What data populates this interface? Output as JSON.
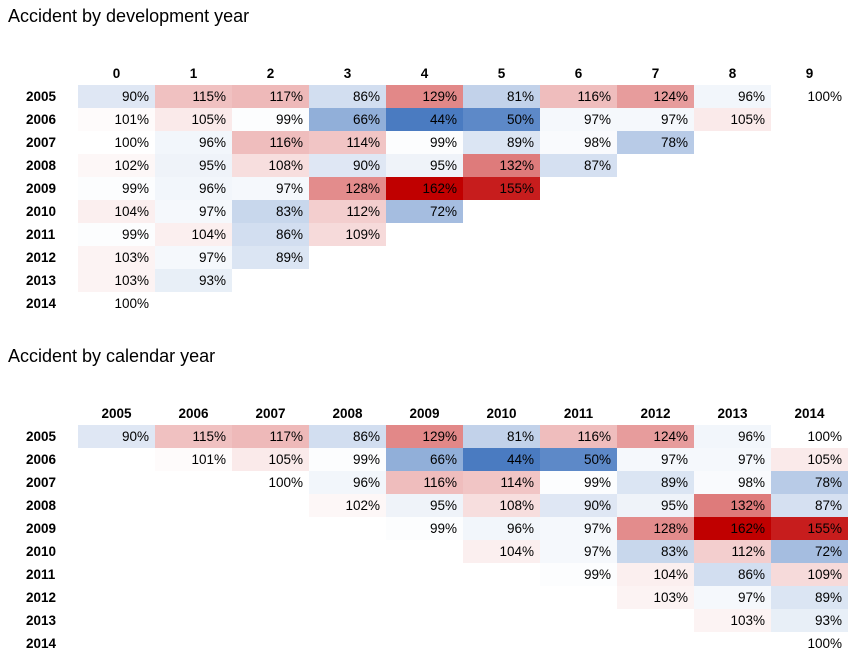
{
  "chart_data": [
    {
      "type": "heatmap",
      "title": "Accident by development year",
      "columns": [
        "0",
        "1",
        "2",
        "3",
        "4",
        "5",
        "6",
        "7",
        "8",
        "9"
      ],
      "rows": [
        {
          "label": "2005",
          "offset": 0,
          "values": [
            90,
            115,
            117,
            86,
            129,
            81,
            116,
            124,
            96,
            100
          ]
        },
        {
          "label": "2006",
          "offset": 0,
          "values": [
            101,
            105,
            99,
            66,
            44,
            50,
            97,
            97,
            105
          ]
        },
        {
          "label": "2007",
          "offset": 0,
          "values": [
            100,
            96,
            116,
            114,
            99,
            89,
            98,
            78
          ]
        },
        {
          "label": "2008",
          "offset": 0,
          "values": [
            102,
            95,
            108,
            90,
            95,
            132,
            87
          ]
        },
        {
          "label": "2009",
          "offset": 0,
          "values": [
            99,
            96,
            97,
            128,
            162,
            155
          ]
        },
        {
          "label": "2010",
          "offset": 0,
          "values": [
            104,
            97,
            83,
            112,
            72
          ]
        },
        {
          "label": "2011",
          "offset": 0,
          "values": [
            99,
            104,
            86,
            109
          ]
        },
        {
          "label": "2012",
          "offset": 0,
          "values": [
            103,
            97,
            89
          ]
        },
        {
          "label": "2013",
          "offset": 0,
          "values": [
            103,
            93
          ]
        },
        {
          "label": "2014",
          "offset": 0,
          "values": [
            100
          ]
        }
      ],
      "unit": "%"
    },
    {
      "type": "heatmap",
      "title": "Accident by calendar year",
      "columns": [
        "2005",
        "2006",
        "2007",
        "2008",
        "2009",
        "2010",
        "2011",
        "2012",
        "2013",
        "2014"
      ],
      "rows": [
        {
          "label": "2005",
          "offset": 0,
          "values": [
            90,
            115,
            117,
            86,
            129,
            81,
            116,
            124,
            96,
            100
          ]
        },
        {
          "label": "2006",
          "offset": 1,
          "values": [
            101,
            105,
            99,
            66,
            44,
            50,
            97,
            97,
            105
          ]
        },
        {
          "label": "2007",
          "offset": 2,
          "values": [
            100,
            96,
            116,
            114,
            99,
            89,
            98,
            78
          ]
        },
        {
          "label": "2008",
          "offset": 3,
          "values": [
            102,
            95,
            108,
            90,
            95,
            132,
            87
          ]
        },
        {
          "label": "2009",
          "offset": 4,
          "values": [
            99,
            96,
            97,
            128,
            162,
            155
          ]
        },
        {
          "label": "2010",
          "offset": 5,
          "values": [
            104,
            97,
            83,
            112,
            72
          ]
        },
        {
          "label": "2011",
          "offset": 6,
          "values": [
            99,
            104,
            86,
            109
          ]
        },
        {
          "label": "2012",
          "offset": 7,
          "values": [
            103,
            97,
            89
          ]
        },
        {
          "label": "2013",
          "offset": 8,
          "values": [
            103,
            93
          ]
        },
        {
          "label": "2014",
          "offset": 9,
          "values": [
            100
          ]
        }
      ],
      "unit": "%"
    }
  ],
  "colors": {
    "low": "#4a7bc1",
    "mid": "#ffffff",
    "high": "#c00000"
  }
}
